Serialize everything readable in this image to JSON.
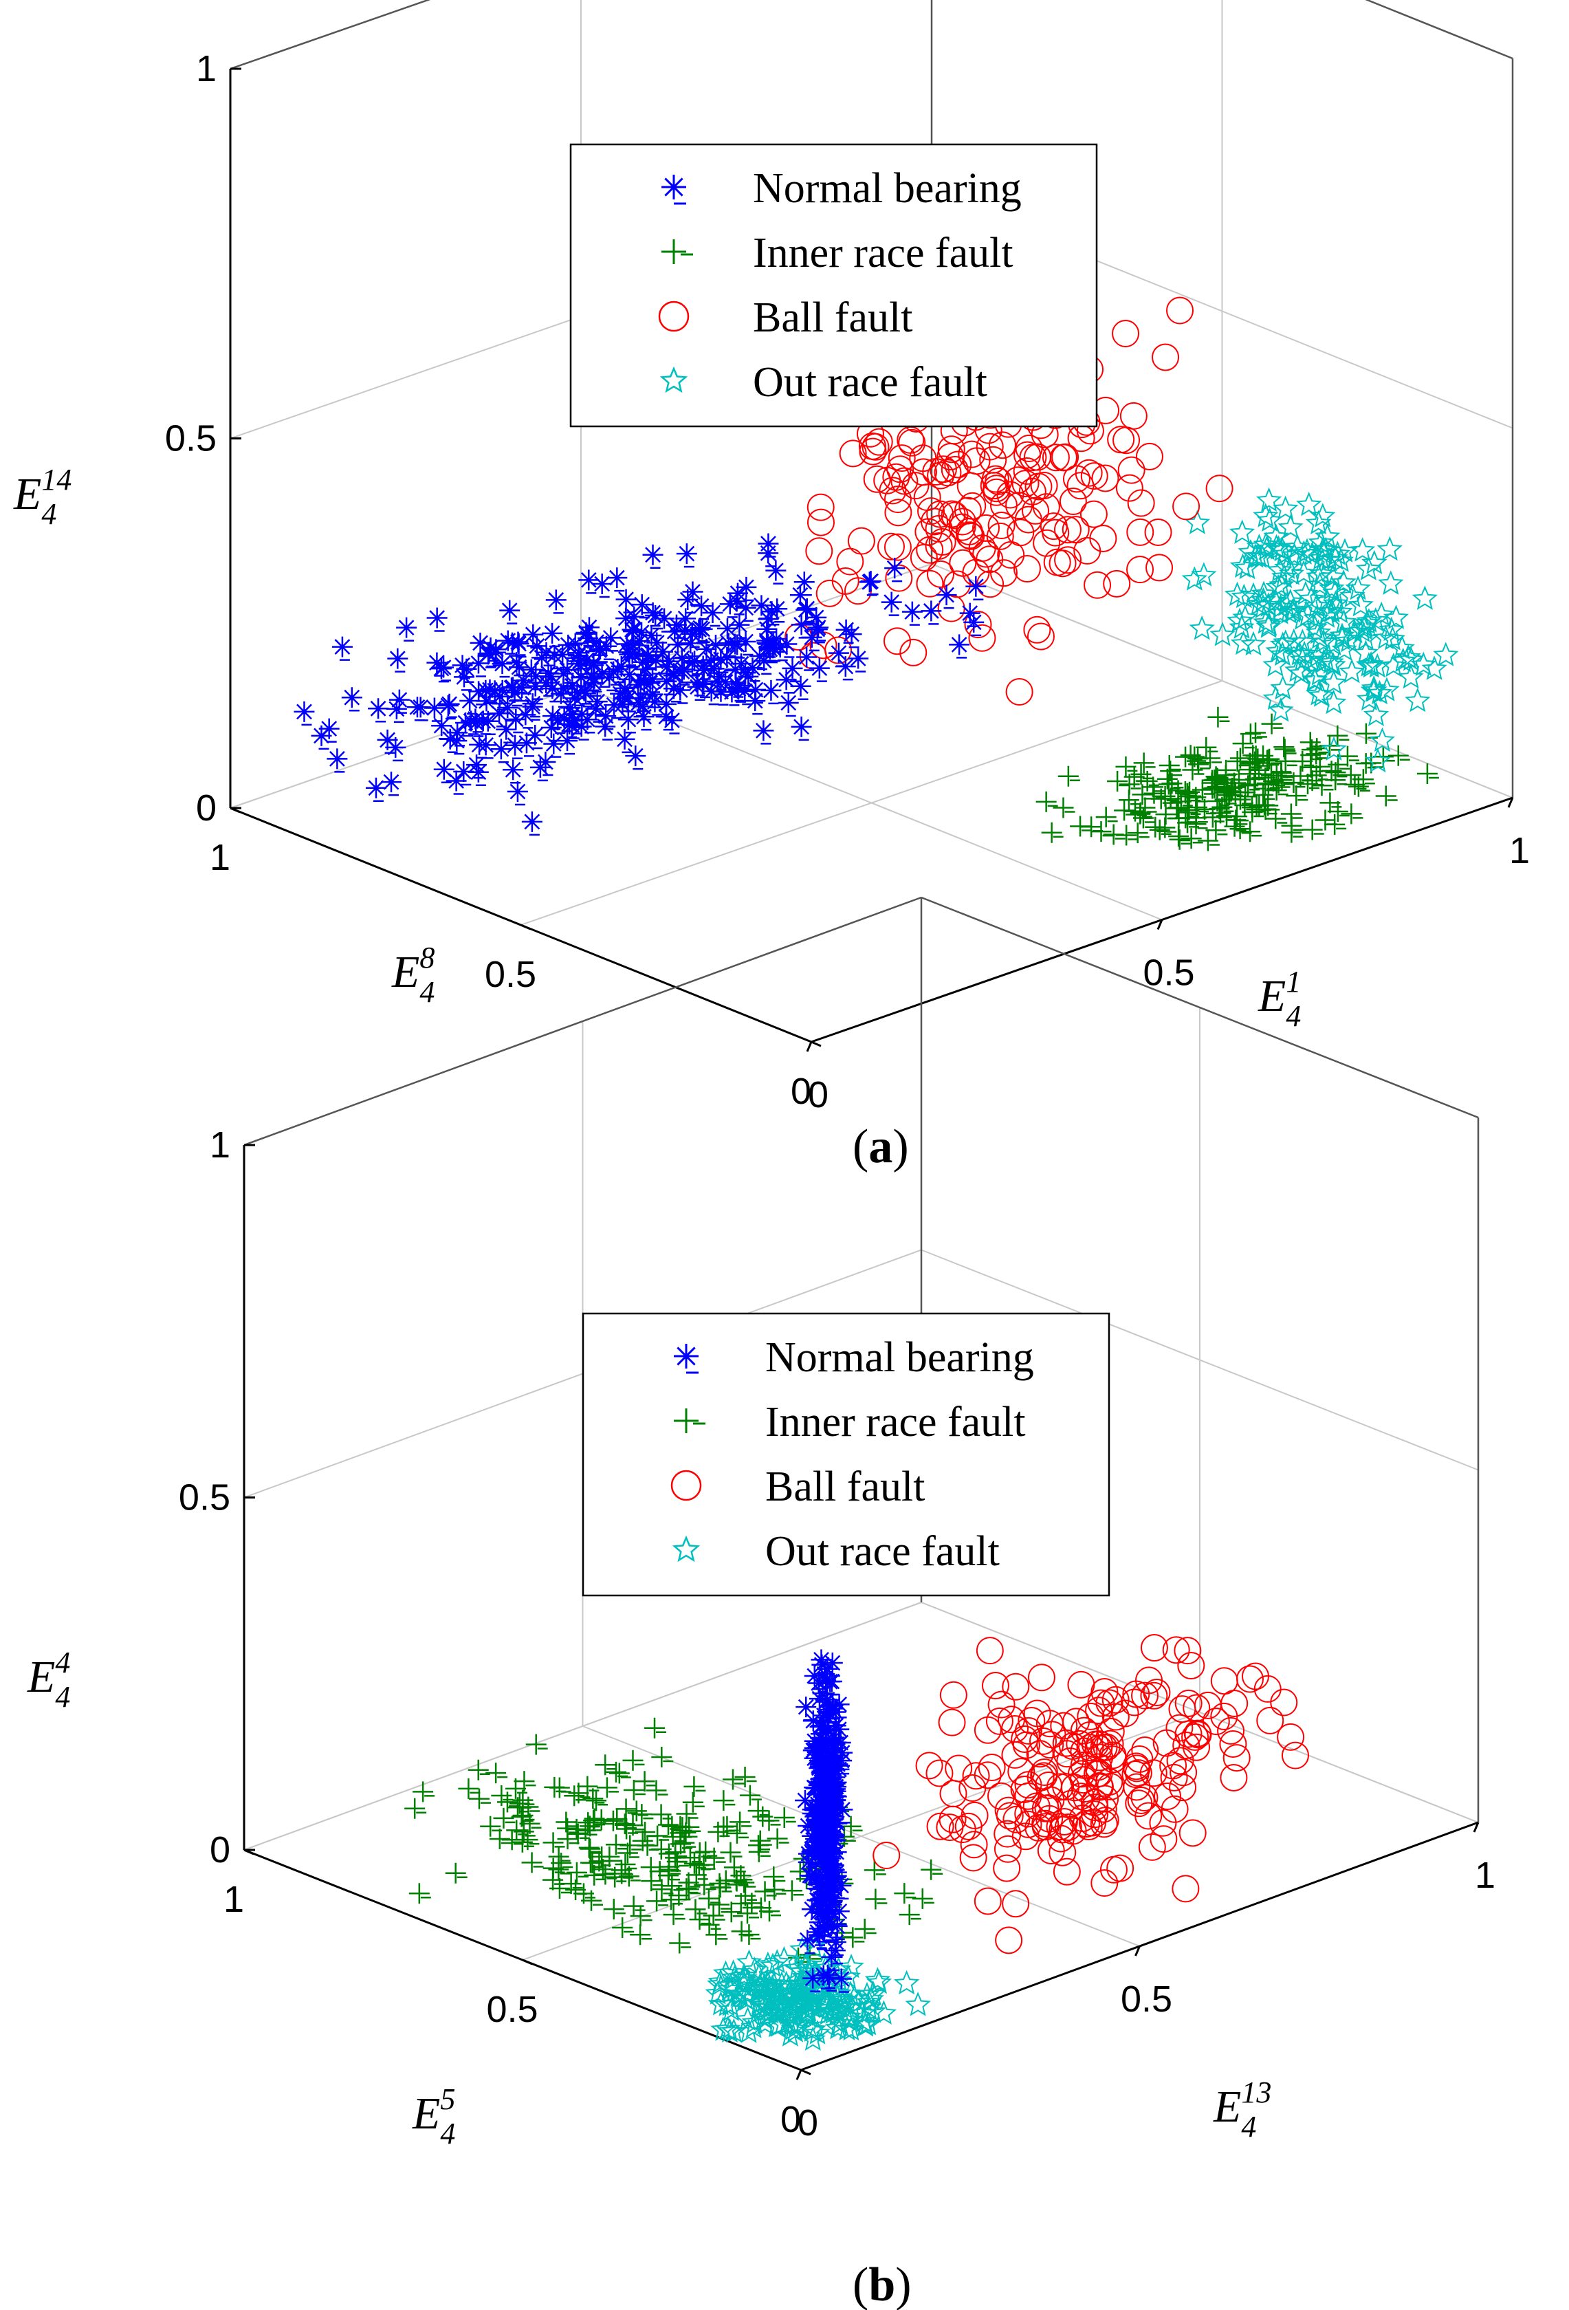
{
  "chart_data": [
    {
      "type": "scatter",
      "panel_label": {
        "open": "(",
        "letter": "a",
        "close": ")"
      },
      "axes": {
        "x": {
          "title": "E",
          "sup": "1",
          "sub": "4",
          "ticks": [
            "0",
            "0.5",
            "1"
          ],
          "range": [
            0,
            1
          ]
        },
        "y": {
          "title": "E",
          "sup": "8",
          "sub": "4",
          "ticks": [
            "0",
            "0.5",
            "1"
          ],
          "range": [
            0,
            1
          ]
        },
        "z": {
          "title": "E",
          "sup": "14",
          "sub": "4",
          "ticks": [
            "0",
            "0.5",
            "1"
          ],
          "range": [
            0,
            1
          ]
        }
      },
      "grid": true,
      "legend_position": "top-center",
      "legend": [
        {
          "label": "Normal bearing",
          "marker": "asterisk",
          "color": "#0000ff"
        },
        {
          "label": "Inner race fault",
          "marker": "plus",
          "color": "#008000"
        },
        {
          "label": "Ball fault",
          "marker": "circle",
          "color": "#ff0000"
        },
        {
          "label": "Out race fault",
          "marker": "star",
          "color": "#00bfbf"
        }
      ],
      "clusters": [
        {
          "series": "Normal bearing",
          "count": 330,
          "x": [
            0.02,
            0.75
          ],
          "y": [
            0.55,
            1.0
          ],
          "z": [
            0.08,
            0.18
          ]
        },
        {
          "series": "Inner race fault",
          "count": 200,
          "x": [
            0.55,
            0.98
          ],
          "y": [
            0.05,
            0.35
          ],
          "z": [
            0.0,
            0.05
          ]
        },
        {
          "series": "Ball fault",
          "count": 200,
          "x": [
            0.55,
            0.95
          ],
          "y": [
            0.35,
            0.85
          ],
          "z": [
            0.1,
            0.55
          ]
        },
        {
          "series": "Out race fault",
          "count": 180,
          "x": [
            0.85,
            1.0
          ],
          "y": [
            0.05,
            0.45
          ],
          "z": [
            0.05,
            0.35
          ]
        }
      ]
    },
    {
      "type": "scatter",
      "panel_label": {
        "open": "(",
        "letter": "b",
        "close": ")"
      },
      "axes": {
        "x": {
          "title": "E",
          "sup": "13",
          "sub": "4",
          "ticks": [
            "0",
            "0.5",
            "1"
          ],
          "range": [
            0,
            1
          ]
        },
        "y": {
          "title": "E",
          "sup": "5",
          "sub": "4",
          "ticks": [
            "0",
            "0.5",
            "1"
          ],
          "range": [
            0,
            1
          ]
        },
        "z": {
          "title": "E",
          "sup": "4",
          "sub": "4",
          "ticks": [
            "0",
            "0.5",
            "1"
          ],
          "range": [
            0,
            1
          ]
        }
      },
      "grid": true,
      "legend_position": "top-center",
      "legend": [
        {
          "label": "Normal bearing",
          "marker": "asterisk",
          "color": "#0000ff"
        },
        {
          "label": "Inner race fault",
          "marker": "plus",
          "color": "#008000"
        },
        {
          "label": "Ball fault",
          "marker": "circle",
          "color": "#ff0000"
        },
        {
          "label": "Out race fault",
          "marker": "star",
          "color": "#00bfbf"
        }
      ],
      "clusters": [
        {
          "series": "Normal bearing",
          "count": 260,
          "x": [
            0.18,
            0.22
          ],
          "y": [
            0.18,
            0.22
          ],
          "z": [
            0.0,
            0.45
          ]
        },
        {
          "series": "Inner race fault",
          "count": 220,
          "x": [
            0.05,
            0.45
          ],
          "y": [
            0.2,
            0.9
          ],
          "z": [
            0.0,
            0.1
          ]
        },
        {
          "series": "Ball fault",
          "count": 200,
          "x": [
            0.35,
            0.85
          ],
          "y": [
            0.05,
            0.35
          ],
          "z": [
            0.0,
            0.3
          ]
        },
        {
          "series": "Out race fault",
          "count": 200,
          "x": [
            0.0,
            0.2
          ],
          "y": [
            0.0,
            0.25
          ],
          "z": [
            0.0,
            0.05
          ]
        }
      ]
    }
  ]
}
